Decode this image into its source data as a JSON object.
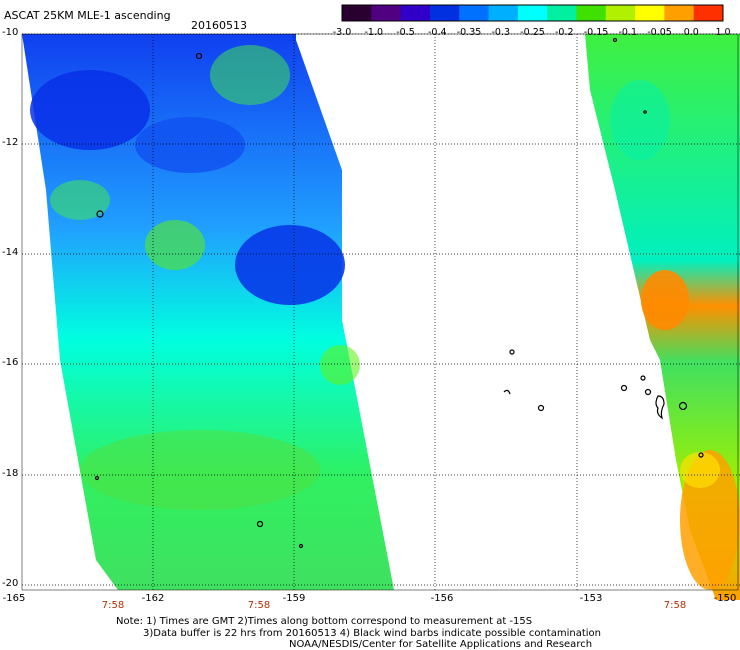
{
  "header": {
    "title": "ASCAT 25KM MLE-1 ascending",
    "date": "20160513"
  },
  "colorbar": {
    "labels": [
      "-3.0",
      "-1.0",
      "-0.5",
      "-0.4",
      "-0.35",
      "-0.3",
      "-0.25",
      "-0.2",
      "-0.15",
      "-0.1",
      "-0.05",
      "0.0",
      "1.0"
    ],
    "colors": [
      "#2a0030",
      "#500080",
      "#3000c8",
      "#0030e0",
      "#0070ff",
      "#00b0ff",
      "#00ffff",
      "#00f0a0",
      "#40e000",
      "#b0f000",
      "#ffff00",
      "#ffa000",
      "#ff3000"
    ]
  },
  "axes": {
    "y_labels": [
      "-10",
      "-12",
      "-14",
      "-16",
      "-18",
      "-20"
    ],
    "x_labels": [
      "-165",
      "-162",
      "-159",
      "-156",
      "-153",
      "-150"
    ],
    "time_labels": [
      "7:58",
      "7:58",
      "7:58"
    ]
  },
  "notes": {
    "line1": "Note: 1) Times are GMT 2)Times along bottom correspond to measurement at -15S",
    "line2": "3)Data buffer is 22 hrs from 20160513 4) Black wind barbs indicate possible contamination",
    "line3": "NOAA/NESDIS/Center for Satellite Applications and Research"
  },
  "colors": {
    "grid": "#000000",
    "time_label": "#b03000",
    "low_mle": "#0030e0",
    "mid_mle": "#00ffff",
    "high_mle": "#ff8000"
  }
}
